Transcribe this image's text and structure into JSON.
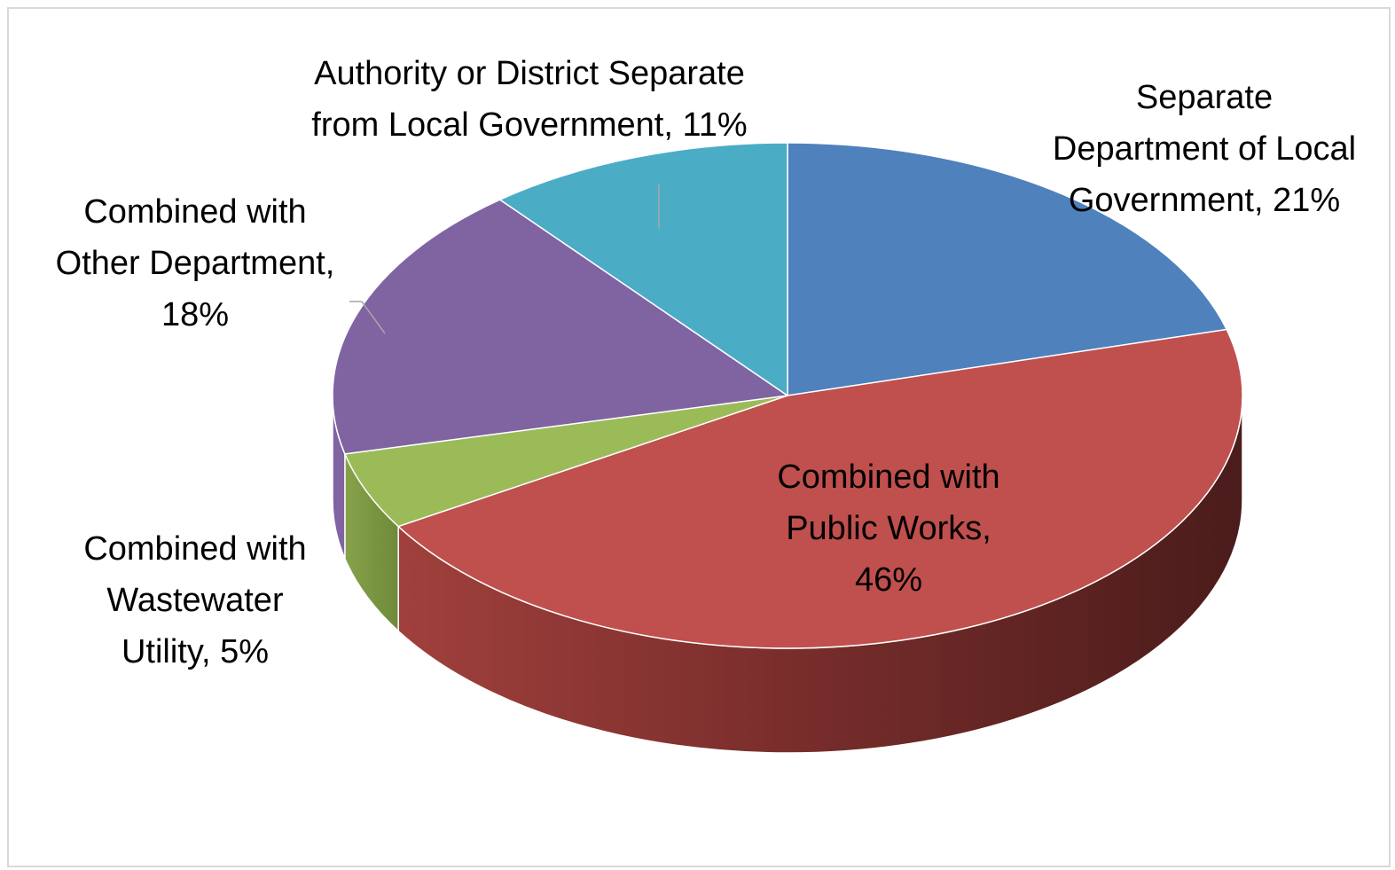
{
  "chart_data": {
    "type": "pie",
    "style": "3d",
    "title": "",
    "slices": [
      {
        "label": "Separate Department of Local Government",
        "value": 21,
        "display": "21%",
        "color": "#4f81bd"
      },
      {
        "label": "Combined with Public Works",
        "value": 46,
        "display": "46%",
        "color": "#c0504d"
      },
      {
        "label": "Combined with Wastewater Utility",
        "value": 5,
        "display": "5%",
        "color": "#9bbb59"
      },
      {
        "label": "Combined with Other Department",
        "value": 18,
        "display": "18%",
        "color": "#8064a2"
      },
      {
        "label": "Authority or District Separate from Local Government",
        "value": 11,
        "display": "11%",
        "color": "#4bacc6"
      }
    ],
    "data_labels": [
      {
        "lines": [
          "Separate",
          "Department of Local",
          "Government, 21%"
        ]
      },
      {
        "lines": [
          "Combined with",
          "Public Works,",
          "46%"
        ]
      },
      {
        "lines": [
          "Combined with",
          "Wastewater",
          "Utility, 5%"
        ]
      },
      {
        "lines": [
          "Combined with",
          "Other Department,",
          "18%"
        ]
      },
      {
        "lines": [
          "Authority or District Separate",
          "from Local Government, 11%"
        ]
      }
    ],
    "legend": "none"
  }
}
